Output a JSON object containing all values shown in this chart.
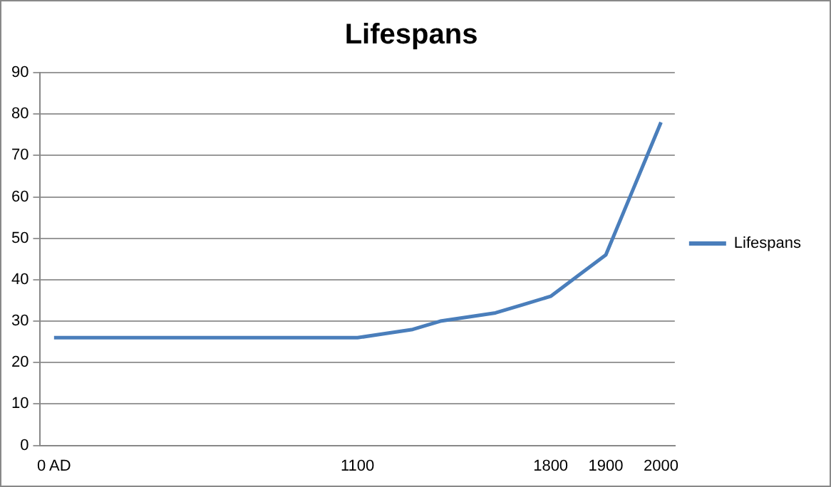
{
  "chart_data": {
    "type": "line",
    "title": "Lifespans",
    "categories": [
      "0 AD",
      null,
      null,
      null,
      null,
      null,
      null,
      null,
      null,
      null,
      null,
      "1100",
      null,
      null,
      null,
      null,
      null,
      null,
      "1800",
      null,
      "1900",
      null,
      "2000"
    ],
    "series": [
      {
        "name": "Lifespans",
        "color": "#4a7ebb",
        "values": [
          26,
          26,
          26,
          26,
          26,
          26,
          26,
          26,
          26,
          26,
          26,
          26,
          27,
          28,
          30,
          31,
          32,
          34,
          36,
          41,
          46,
          62,
          78
        ]
      }
    ],
    "ylim": [
      0,
      90
    ],
    "yticks": [
      0,
      10,
      20,
      30,
      40,
      50,
      60,
      70,
      80,
      90
    ],
    "grid": "y",
    "legend": "right",
    "marker": "none",
    "line_style": "solid"
  }
}
